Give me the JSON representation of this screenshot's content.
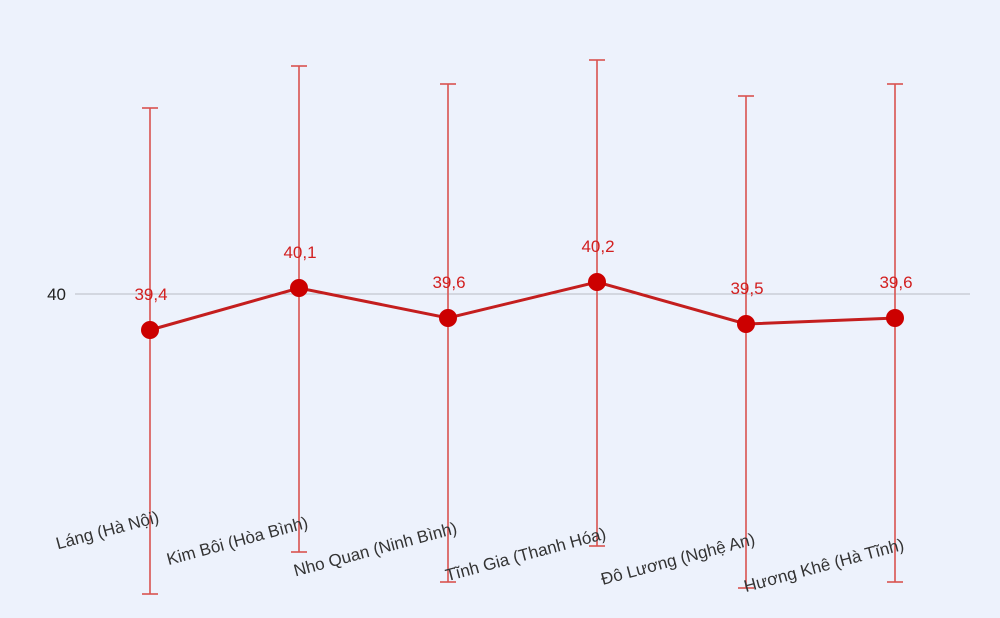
{
  "chart_data": {
    "type": "line",
    "categories": [
      "Láng (Hà Nội)",
      "Kim Bôi (Hòa Bình)",
      "Nho Quan (Ninh Bình)",
      "Tĩnh Gia (Thanh Hóa)",
      "Đô Lương (Nghệ An)",
      "Hương Khê (Hà Tĩnh)"
    ],
    "series": [
      {
        "values": [
          39.4,
          40.1,
          39.6,
          40.2,
          39.5,
          39.6
        ],
        "data_labels": [
          "39,4",
          "40,1",
          "39,6",
          "40,2",
          "39,5",
          "39,6"
        ],
        "color": "#cc0000"
      }
    ],
    "error_bars": {
      "upper": [
        43.1,
        43.8,
        43.5,
        43.9,
        43.3,
        43.5
      ],
      "lower": [
        35.0,
        35.7,
        35.2,
        35.8,
        35.1,
        35.2
      ],
      "color": "#d9534f"
    },
    "y_ticks": [
      {
        "value": 40,
        "label": "40"
      }
    ],
    "ylim": [
      34.6,
      44.9
    ],
    "grid": "horizontal gridline at 40",
    "background": "#edf2fc"
  }
}
